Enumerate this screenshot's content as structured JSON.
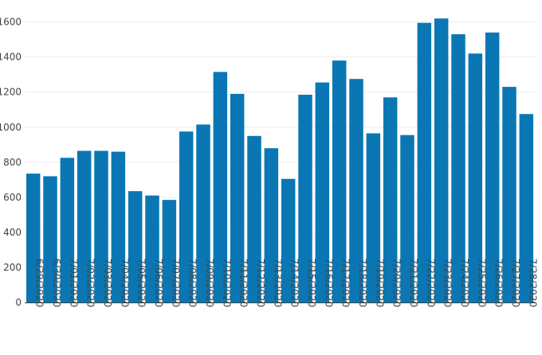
{
  "chart_data": {
    "type": "bar",
    "title": "",
    "xlabel": "",
    "ylabel": "",
    "categories": [
      "6/29/2020",
      "6/30/2020",
      "7/01/2020",
      "7/02/2020",
      "7/03/2020",
      "7/04/2020",
      "7/05/2020",
      "7/06/2020",
      "7/07/2020",
      "7/08/2020",
      "7/09/2020",
      "7/10/2020",
      "7/11/2020",
      "7/12/2020",
      "7/13/2020",
      "7/14/2020",
      "7/15/2020",
      "7/16/2020",
      "7/17/2020",
      "7/18/2020",
      "7/19/2020",
      "7/20/2020",
      "7/21/2020",
      "7/22/2020",
      "7/23/2020",
      "7/24/2020",
      "7/25/2020",
      "7/26/2020",
      "7/27/2020",
      "7/28/2020"
    ],
    "values": [
      735,
      720,
      825,
      865,
      865,
      860,
      635,
      610,
      585,
      975,
      1015,
      1315,
      1190,
      950,
      880,
      705,
      1185,
      1255,
      1380,
      1275,
      965,
      1170,
      955,
      1595,
      1620,
      1530,
      1420,
      1540,
      1230,
      1075
    ],
    "ylim": [
      0,
      1680
    ],
    "yticks": [
      0,
      200,
      400,
      600,
      800,
      1000,
      1200,
      1400,
      1600
    ],
    "grid": true,
    "legend": "none",
    "bar_color": "#0a77b4"
  }
}
